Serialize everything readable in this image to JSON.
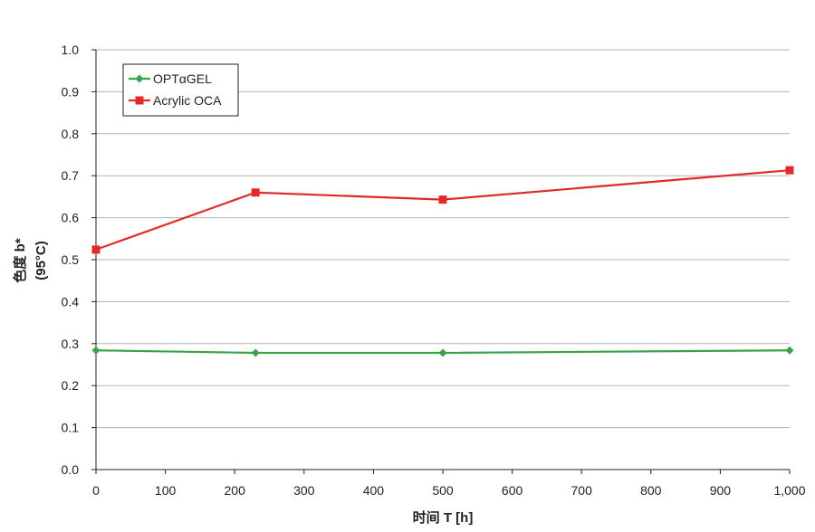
{
  "chart_data": {
    "type": "line",
    "xlabel": "时间 T [h]",
    "ylabel": "色度 b*",
    "ylabel_sub": "(95°C)",
    "xlim": [
      0,
      1000
    ],
    "ylim": [
      0.0,
      1.0
    ],
    "x_ticks": [
      0,
      100,
      200,
      300,
      400,
      500,
      600,
      700,
      800,
      900,
      1000
    ],
    "x_tick_labels": [
      "0",
      "100",
      "200",
      "300",
      "400",
      "500",
      "600",
      "700",
      "800",
      "900",
      "1,000"
    ],
    "y_ticks": [
      0.0,
      0.1,
      0.2,
      0.3,
      0.4,
      0.5,
      0.6,
      0.7,
      0.8,
      0.9,
      1.0
    ],
    "y_tick_labels": [
      "0.0",
      "0.1",
      "0.2",
      "0.3",
      "0.4",
      "0.5",
      "0.6",
      "0.7",
      "0.8",
      "0.9",
      "1.0"
    ],
    "grid": "horizontal",
    "legend_position": "top-left",
    "series": [
      {
        "name": "OPTαGEL",
        "color": "#3aa346",
        "marker": "diamond",
        "x": [
          0,
          230,
          500,
          1000
        ],
        "y": [
          0.284,
          0.278,
          0.278,
          0.284
        ]
      },
      {
        "name": "Acrylic OCA",
        "color": "#e02a2a",
        "marker": "square",
        "x": [
          0,
          230,
          500,
          1000
        ],
        "y": [
          0.524,
          0.66,
          0.643,
          0.713
        ]
      }
    ]
  }
}
